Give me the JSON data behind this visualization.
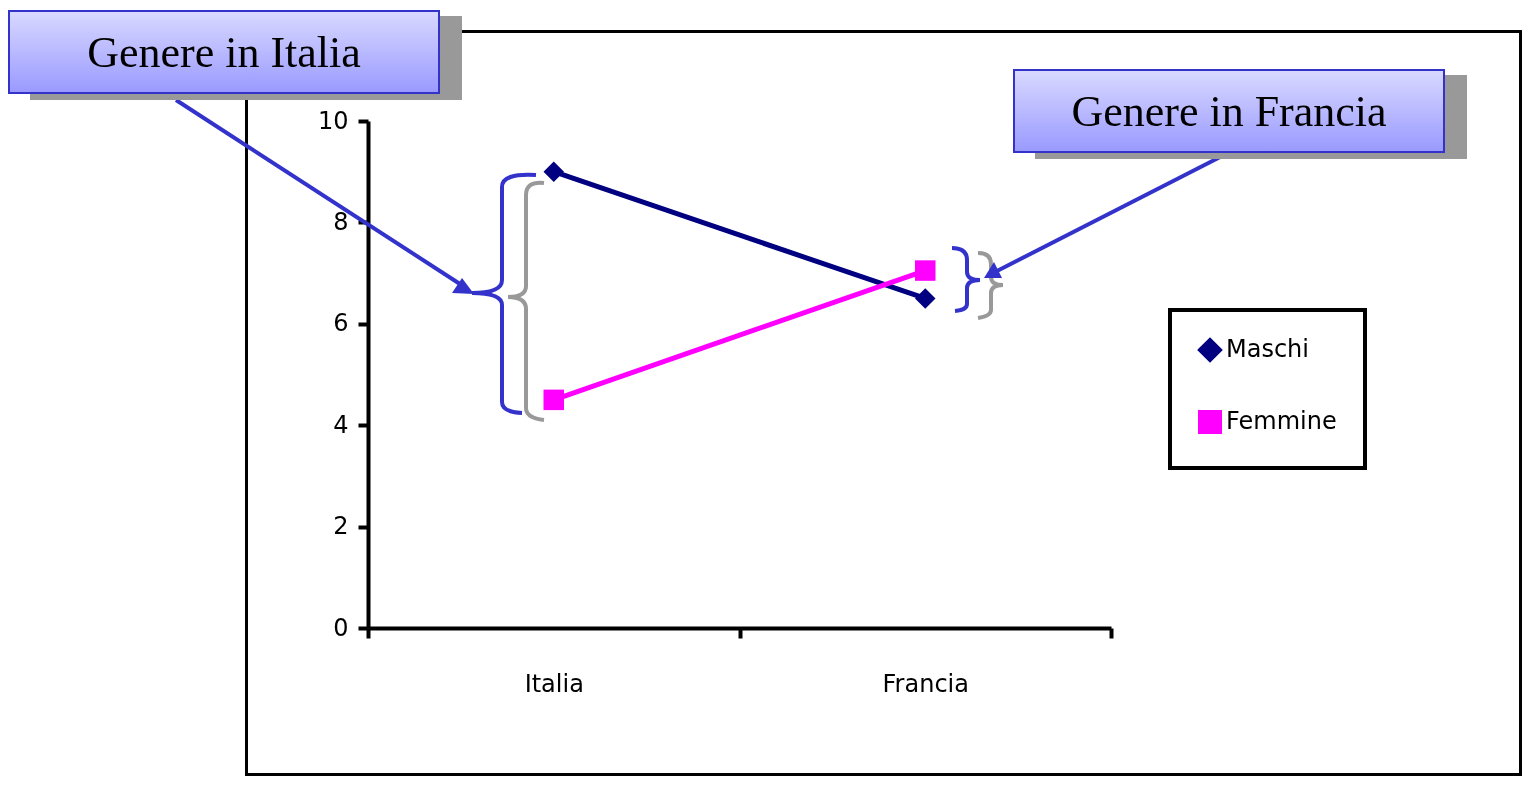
{
  "chart_data": {
    "type": "line",
    "categories": [
      "Italia",
      "Francia"
    ],
    "series": [
      {
        "name": "Maschi",
        "color": "#000080",
        "marker": "diamond",
        "values": [
          9,
          6.5
        ]
      },
      {
        "name": "Femmine",
        "color": "#ff00ff",
        "marker": "square",
        "values": [
          4.5,
          7.05
        ]
      }
    ],
    "ylim": [
      0,
      10
    ],
    "yticks": [
      0,
      2,
      4,
      6,
      8,
      10
    ],
    "grid": false,
    "legend": "right",
    "annotations": [
      "Genere in Italia",
      "Genere in Francia"
    ]
  }
}
